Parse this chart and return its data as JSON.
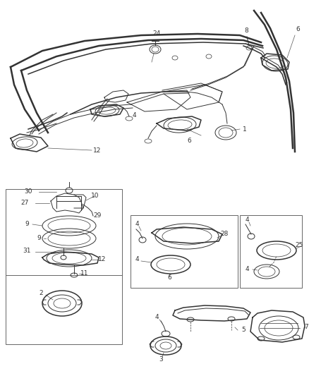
{
  "bg_color": "#ffffff",
  "line_color": "#333333",
  "label_color": "#333333",
  "box_line_color": "#555555",
  "figsize": [
    4.38,
    5.33
  ],
  "dpi": 100,
  "font_size": 6.5,
  "lw_thick": 1.8,
  "lw_med": 1.1,
  "lw_thin": 0.7,
  "lw_hair": 0.5
}
